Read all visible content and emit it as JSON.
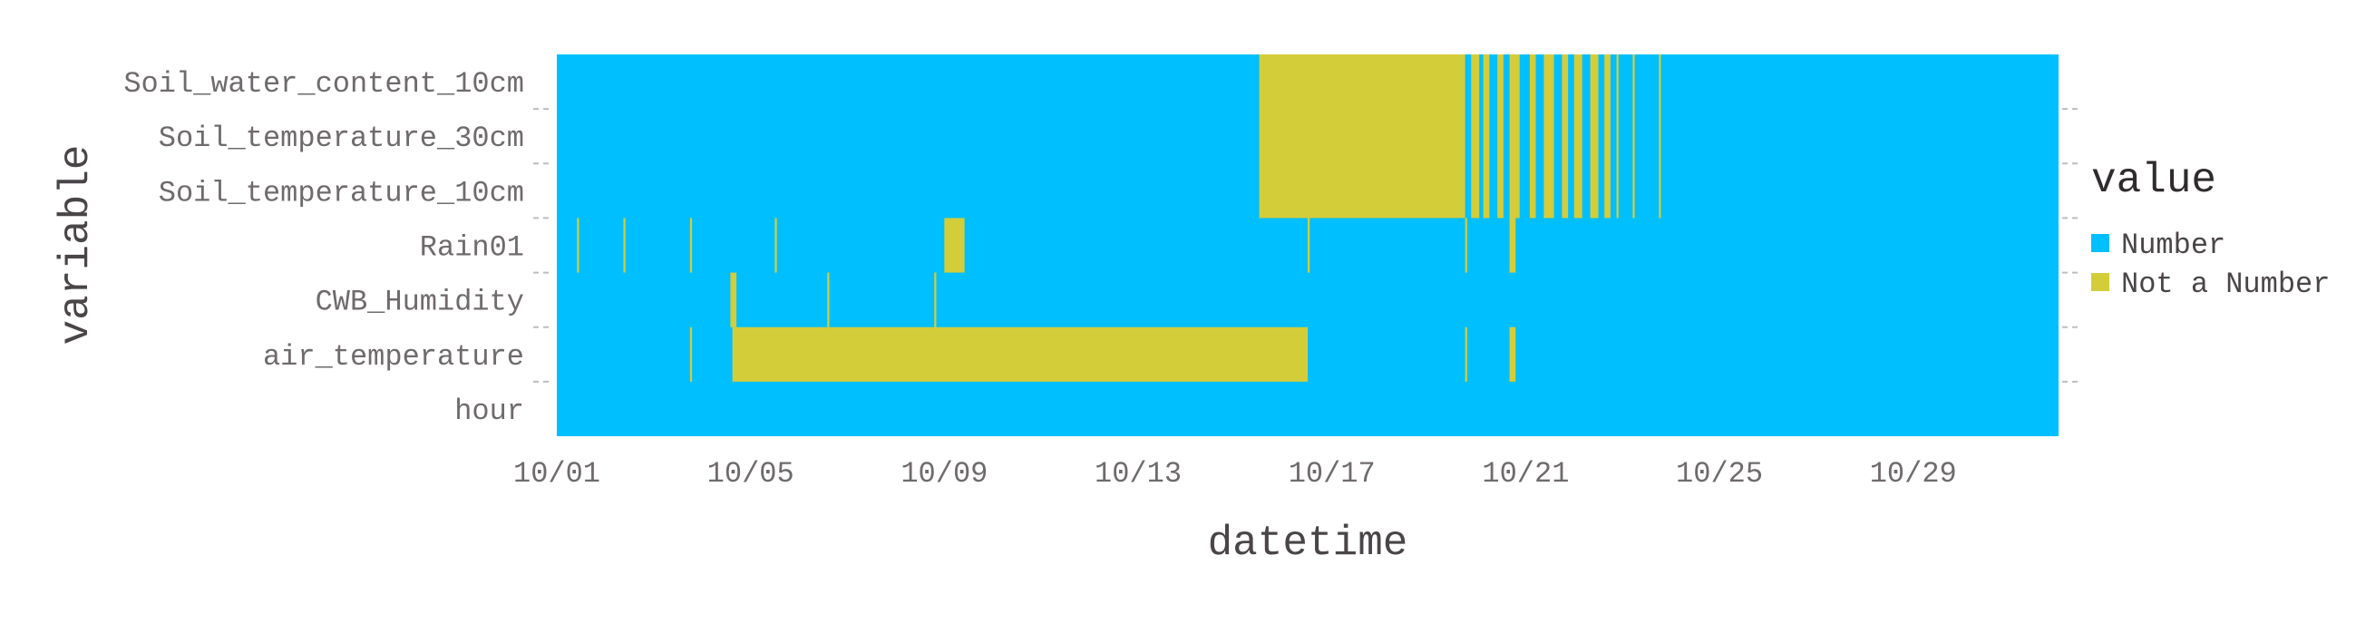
{
  "chart_data": {
    "type": "heatmap",
    "title": "",
    "xlabel": "datetime",
    "ylabel": "variable",
    "x_start": "2023-10-01T00:00",
    "x_end": "2023-11-01T00:00",
    "x_ticks": [
      {
        "date": "2023-10-01",
        "label": "10/01"
      },
      {
        "date": "2023-10-05",
        "label": "10/05"
      },
      {
        "date": "2023-10-09",
        "label": "10/09"
      },
      {
        "date": "2023-10-13",
        "label": "10/13"
      },
      {
        "date": "2023-10-17",
        "label": "10/17"
      },
      {
        "date": "2023-10-21",
        "label": "10/21"
      },
      {
        "date": "2023-10-25",
        "label": "10/25"
      },
      {
        "date": "2023-10-29",
        "label": "10/29"
      }
    ],
    "categories": [
      "Soil_water_content_10cm",
      "Soil_temperature_30cm",
      "Soil_temperature_10cm",
      "Rain01",
      "CWB_Humidity",
      "air_temperature",
      "hour"
    ],
    "legend": {
      "title": "value",
      "placement": "right",
      "entries": [
        {
          "label": "Number",
          "color": "#00bfff"
        },
        {
          "label": "Not a Number",
          "color": "#d4cd3a"
        }
      ]
    },
    "grid": false,
    "missing_segments": [
      {
        "rows": [
          "Soil_water_content_10cm",
          "Soil_temperature_30cm",
          "Soil_temperature_10cm"
        ],
        "start": "2023-10-15T12:00",
        "end": "2023-10-19T18:00"
      },
      {
        "rows": [
          "Soil_water_content_10cm",
          "Soil_temperature_30cm",
          "Soil_temperature_10cm"
        ],
        "start": "2023-10-19T21:00",
        "end": "2023-10-20T01:00"
      },
      {
        "rows": [
          "Soil_water_content_10cm",
          "Soil_temperature_30cm",
          "Soil_temperature_10cm"
        ],
        "start": "2023-10-20T03:00",
        "end": "2023-10-20T06:00"
      },
      {
        "rows": [
          "Soil_water_content_10cm",
          "Soil_temperature_30cm",
          "Soil_temperature_10cm"
        ],
        "start": "2023-10-20T10:00",
        "end": "2023-10-20T13:00"
      },
      {
        "rows": [
          "Soil_water_content_10cm",
          "Soil_temperature_30cm",
          "Soil_temperature_10cm"
        ],
        "start": "2023-10-20T16:00",
        "end": "2023-10-20T21:00"
      },
      {
        "rows": [
          "Soil_water_content_10cm",
          "Soil_temperature_30cm",
          "Soil_temperature_10cm"
        ],
        "start": "2023-10-21T02:00",
        "end": "2023-10-21T05:00"
      },
      {
        "rows": [
          "Soil_water_content_10cm",
          "Soil_temperature_30cm",
          "Soil_temperature_10cm"
        ],
        "start": "2023-10-21T09:00",
        "end": "2023-10-21T14:00"
      },
      {
        "rows": [
          "Soil_water_content_10cm",
          "Soil_temperature_30cm",
          "Soil_temperature_10cm"
        ],
        "start": "2023-10-21T18:00",
        "end": "2023-10-21T21:00"
      },
      {
        "rows": [
          "Soil_water_content_10cm",
          "Soil_temperature_30cm",
          "Soil_temperature_10cm"
        ],
        "start": "2023-10-22T00:00",
        "end": "2023-10-22T04:00"
      },
      {
        "rows": [
          "Soil_water_content_10cm",
          "Soil_temperature_30cm",
          "Soil_temperature_10cm"
        ],
        "start": "2023-10-22T08:00",
        "end": "2023-10-22T12:00"
      },
      {
        "rows": [
          "Soil_water_content_10cm",
          "Soil_temperature_30cm",
          "Soil_temperature_10cm"
        ],
        "start": "2023-10-22T15:00",
        "end": "2023-10-22T18:00"
      },
      {
        "rows": [
          "Soil_water_content_10cm",
          "Soil_temperature_30cm",
          "Soil_temperature_10cm"
        ],
        "start": "2023-10-22T21:00",
        "end": "2023-10-22T22:00"
      },
      {
        "rows": [
          "Soil_water_content_10cm",
          "Soil_temperature_30cm",
          "Soil_temperature_10cm"
        ],
        "start": "2023-10-23T05:00",
        "end": "2023-10-23T06:00"
      },
      {
        "rows": [
          "Soil_water_content_10cm",
          "Soil_temperature_30cm",
          "Soil_temperature_10cm"
        ],
        "start": "2023-10-23T18:00",
        "end": "2023-10-23T19:00"
      },
      {
        "rows": [
          "Rain01"
        ],
        "start": "2023-10-01T10:00",
        "end": "2023-10-01T11:00"
      },
      {
        "rows": [
          "Rain01"
        ],
        "start": "2023-10-02T09:00",
        "end": "2023-10-02T10:00"
      },
      {
        "rows": [
          "Rain01"
        ],
        "start": "2023-10-03T18:00",
        "end": "2023-10-03T19:00"
      },
      {
        "rows": [
          "Rain01"
        ],
        "start": "2023-10-05T12:00",
        "end": "2023-10-05T13:00"
      },
      {
        "rows": [
          "Rain01"
        ],
        "start": "2023-10-09T00:00",
        "end": "2023-10-09T10:00"
      },
      {
        "rows": [
          "Rain01"
        ],
        "start": "2023-10-16T12:00",
        "end": "2023-10-16T13:00"
      },
      {
        "rows": [
          "Rain01"
        ],
        "start": "2023-10-19T18:00",
        "end": "2023-10-19T19:00"
      },
      {
        "rows": [
          "Rain01"
        ],
        "start": "2023-10-20T16:00",
        "end": "2023-10-20T19:00"
      },
      {
        "rows": [
          "CWB_Humidity"
        ],
        "start": "2023-10-04T14:00",
        "end": "2023-10-04T17:00"
      },
      {
        "rows": [
          "CWB_Humidity"
        ],
        "start": "2023-10-06T14:00",
        "end": "2023-10-06T15:00"
      },
      {
        "rows": [
          "CWB_Humidity"
        ],
        "start": "2023-10-08T19:00",
        "end": "2023-10-08T20:00"
      },
      {
        "rows": [
          "air_temperature"
        ],
        "start": "2023-10-03T18:00",
        "end": "2023-10-03T19:00"
      },
      {
        "rows": [
          "air_temperature"
        ],
        "start": "2023-10-04T15:00",
        "end": "2023-10-16T12:00"
      },
      {
        "rows": [
          "air_temperature"
        ],
        "start": "2023-10-19T18:00",
        "end": "2023-10-19T19:00"
      },
      {
        "rows": [
          "air_temperature"
        ],
        "start": "2023-10-20T16:00",
        "end": "2023-10-20T19:00"
      }
    ]
  }
}
